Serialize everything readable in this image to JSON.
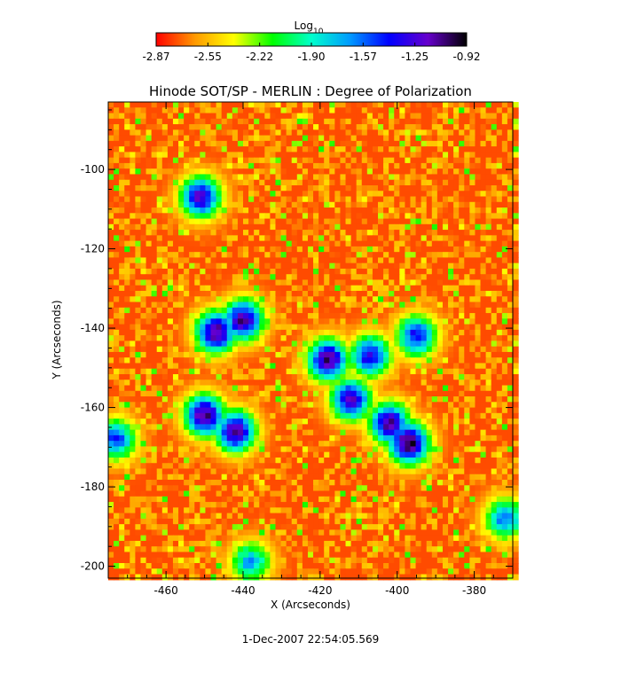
{
  "colorbar": {
    "title": "Log",
    "title_subscript": "10",
    "ticks": [
      "-2.87",
      "-2.55",
      "-2.22",
      "-1.90",
      "-1.57",
      "-1.25",
      "-0.92"
    ],
    "range": [
      -2.87,
      -0.92
    ],
    "gradient": [
      "#ff0000",
      "#ff9900",
      "#ffff00",
      "#00ff00",
      "#00ffcc",
      "#0099ff",
      "#0000ff",
      "#6600cc",
      "#000000"
    ]
  },
  "timestamp": "1-Dec-2007 22:54:05.569",
  "chart_data": {
    "type": "heatmap",
    "title": "Hinode SOT/SP - MERLIN : Degree of Polarization",
    "xlabel": "X (Arcseconds)",
    "ylabel": "Y (Arcseconds)",
    "xlim": [
      -475,
      -370
    ],
    "ylim": [
      -203,
      -83
    ],
    "x_ticks": [
      -460,
      -440,
      -420,
      -400,
      -380
    ],
    "y_ticks": [
      -100,
      -120,
      -140,
      -160,
      -180,
      -200
    ],
    "x_tick_labels": [
      "-460",
      "-440",
      "-420",
      "-400",
      "-380"
    ],
    "y_tick_labels": [
      "-100",
      "-120",
      "-140",
      "-160",
      "-180",
      "-200"
    ],
    "value_label": "Log10 degree of polarization",
    "background_level": -2.75,
    "high_polarization_regions": [
      {
        "x": -451,
        "y": -107,
        "level": -1.2
      },
      {
        "x": -447,
        "y": -141,
        "level": -1.05
      },
      {
        "x": -440,
        "y": -138,
        "level": -1.1
      },
      {
        "x": -450,
        "y": -162,
        "level": -1.05
      },
      {
        "x": -442,
        "y": -166,
        "level": -1.1
      },
      {
        "x": -418,
        "y": -148,
        "level": -1.05
      },
      {
        "x": -412,
        "y": -158,
        "level": -1.2
      },
      {
        "x": -407,
        "y": -147,
        "level": -1.3
      },
      {
        "x": -397,
        "y": -169,
        "level": -0.95
      },
      {
        "x": -402,
        "y": -164,
        "level": -1.1
      },
      {
        "x": -395,
        "y": -142,
        "level": -1.4
      },
      {
        "x": -473,
        "y": -168,
        "level": -1.5
      },
      {
        "x": -438,
        "y": -199,
        "level": -1.7
      },
      {
        "x": -372,
        "y": -188,
        "level": -1.6
      }
    ]
  }
}
